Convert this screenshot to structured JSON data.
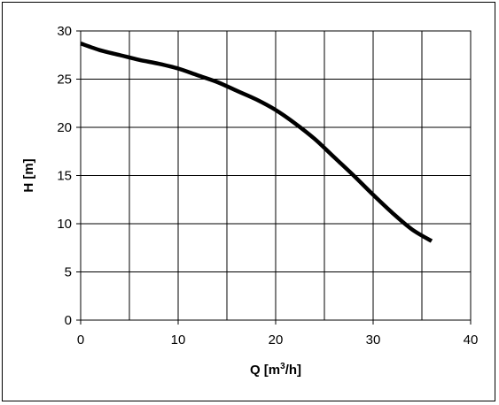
{
  "chart_data": {
    "type": "line",
    "title": "",
    "xlabel": "Q [m3/h]",
    "xlabel_parts": {
      "base": "Q [m",
      "sup": "3",
      "tail": "/h]"
    },
    "ylabel": "H [m]",
    "xlim": [
      0,
      40
    ],
    "ylim": [
      0,
      30
    ],
    "xticks": [
      0,
      10,
      20,
      30,
      40
    ],
    "yticks": [
      0,
      5,
      10,
      15,
      20,
      25,
      30
    ],
    "xgrid_step": 5,
    "ygrid_step": 5,
    "grid": true,
    "legend": "none",
    "series": [
      {
        "color": "#000000",
        "x": [
          0,
          2,
          4,
          6,
          8,
          10,
          12,
          14,
          16,
          18,
          20,
          22,
          24,
          26,
          28,
          30,
          32,
          34,
          36
        ],
        "y": [
          28.7,
          28.0,
          27.5,
          27.0,
          26.6,
          26.1,
          25.4,
          24.7,
          23.8,
          22.9,
          21.8,
          20.4,
          18.8,
          16.9,
          15.0,
          13.0,
          11.1,
          9.4,
          8.2
        ]
      }
    ]
  }
}
